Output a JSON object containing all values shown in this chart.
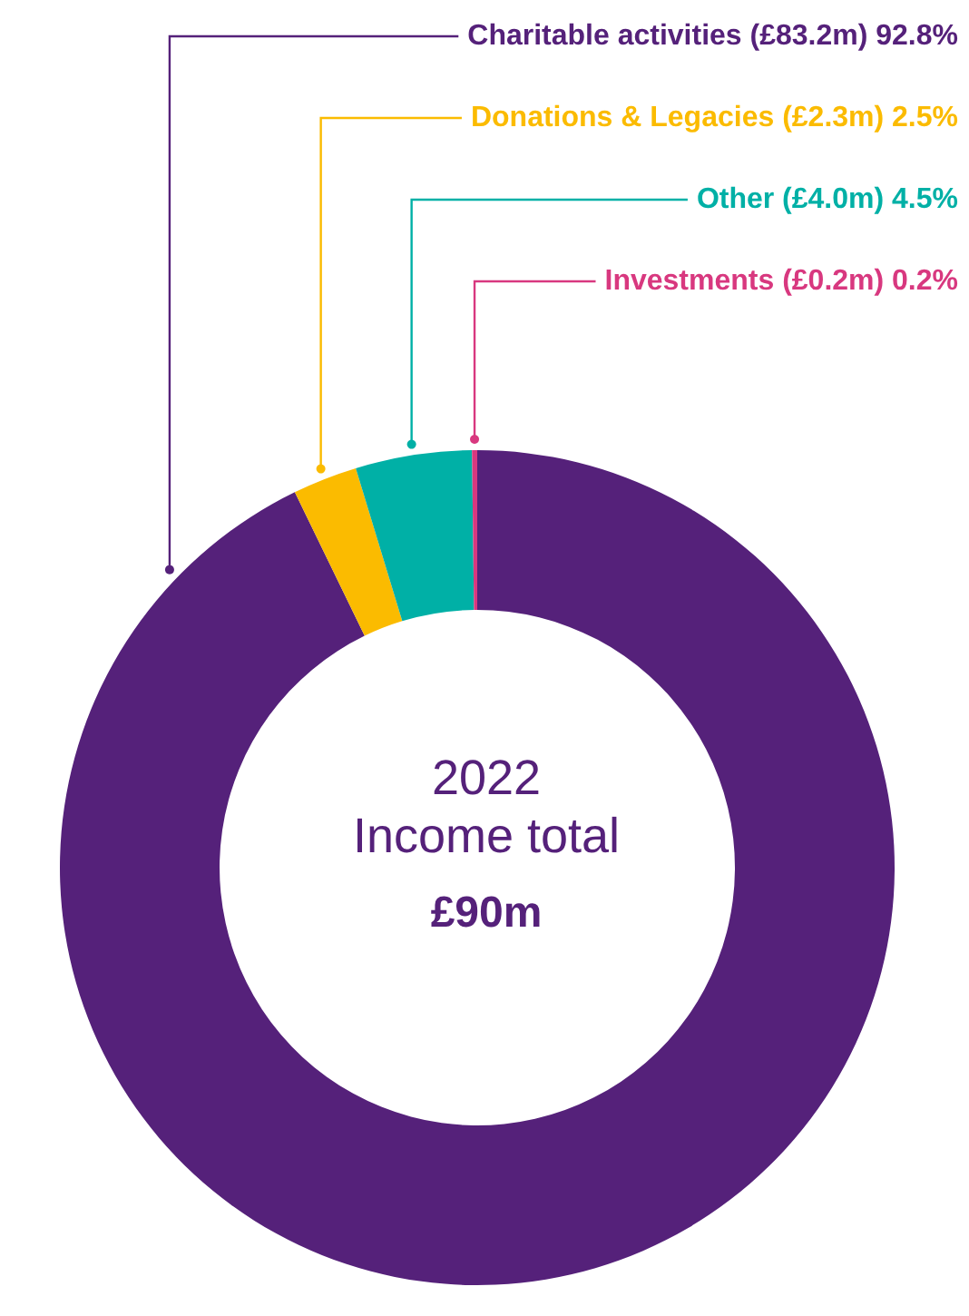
{
  "chart_data": {
    "type": "donut",
    "title": "2022",
    "subtitle": "Income total",
    "annotations": [
      "£90m"
    ],
    "categories": [
      "Charitable activities (£83.2m)",
      "Donations & Legacies (£2.3m)",
      "Other (£4.0m)",
      "Investments (£0.2m)"
    ],
    "values": [
      92.8,
      2.5,
      4.5,
      0.2
    ],
    "value_labels": [
      "92.8%",
      "2.5%",
      "4.5%",
      "0.2%"
    ],
    "colors": [
      "#55217a",
      "#fbbb00",
      "#00b0a6",
      "#d8387f"
    ],
    "legend": false
  }
}
